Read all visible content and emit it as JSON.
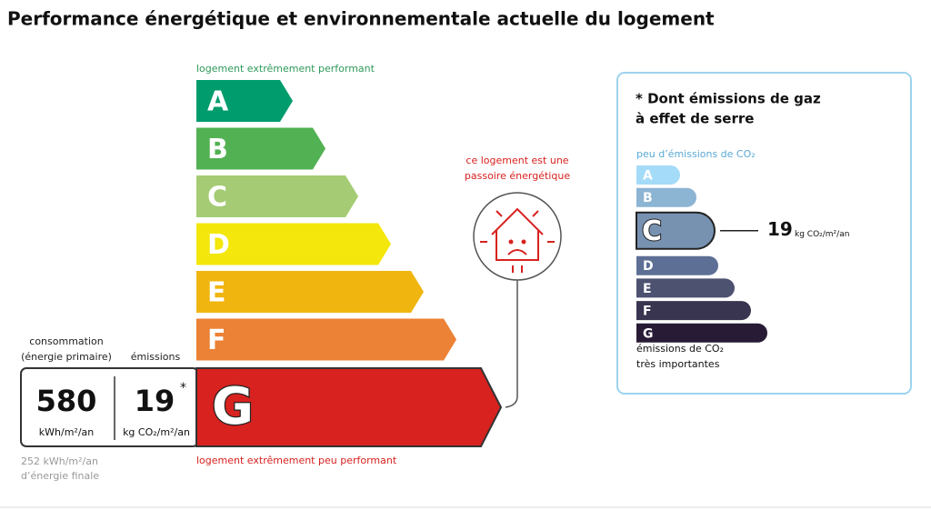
{
  "header": {
    "title": "Performance énergétique et environnementale actuelle du logement"
  },
  "energy": {
    "top_label": "logement extrêmement performant",
    "bottom_label": "logement extrêmement peu performant",
    "classes": [
      {
        "letter": "A",
        "color": "#009c6d"
      },
      {
        "letter": "B",
        "color": "#52b153"
      },
      {
        "letter": "C",
        "color": "#a5cc74"
      },
      {
        "letter": "D",
        "color": "#f3e70b"
      },
      {
        "letter": "E",
        "color": "#f0b50f"
      },
      {
        "letter": "F",
        "color": "#eb8235"
      },
      {
        "letter": "G",
        "color": "#d7221f"
      }
    ],
    "current": "G",
    "consumption": {
      "label": [
        "consommation",
        "(énergie primaire)"
      ],
      "value": 580,
      "unit": "kWh/m²/an"
    },
    "emissions": {
      "label": "émissions",
      "value": 19,
      "asterisk": "*",
      "unit": "kg CO₂/m²/an"
    },
    "final_energy": [
      "252 kWh/m²/an",
      "d’énergie finale"
    ],
    "passoire": [
      "ce logement est une",
      "passoire énergétique"
    ]
  },
  "ghg": {
    "title": [
      "* Dont émissions de gaz",
      "à effet de serre"
    ],
    "top_label": "peu d’émissions de CO₂",
    "bottom_label": [
      "émissions de CO₂",
      "très importantes"
    ],
    "classes": [
      {
        "letter": "A",
        "color": "#a4dbf8"
      },
      {
        "letter": "B",
        "color": "#8cb4d3"
      },
      {
        "letter": "C",
        "color": "#7792b1"
      },
      {
        "letter": "D",
        "color": "#5d6f95"
      },
      {
        "letter": "E",
        "color": "#4d5271"
      },
      {
        "letter": "F",
        "color": "#393550"
      },
      {
        "letter": "G",
        "color": "#281b35"
      }
    ],
    "current": "C",
    "value": 19,
    "unit": "kg CO₂/m²/an"
  }
}
